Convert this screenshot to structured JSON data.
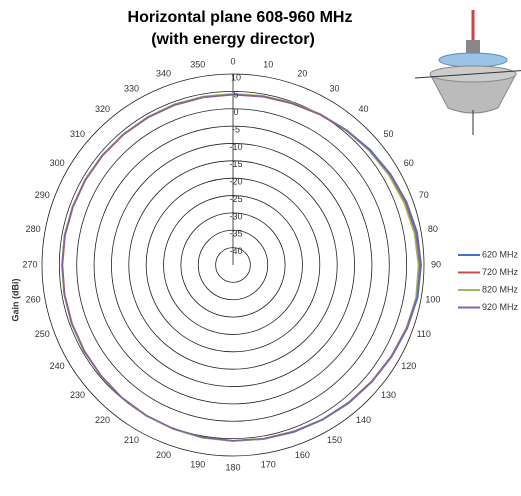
{
  "chart_data": {
    "type": "polar",
    "title": "Horizontal plane 608-960 MHz",
    "subtitle": "(with energy director)",
    "r_label": "Gain (dBi)",
    "rlim": [
      -45,
      10
    ],
    "rticks": [
      10,
      5,
      0,
      -5,
      -10,
      -15,
      -20,
      -25,
      -30,
      -35,
      -40
    ],
    "theta": [
      0,
      10,
      20,
      30,
      40,
      50,
      60,
      70,
      80,
      90,
      100,
      110,
      120,
      130,
      140,
      150,
      160,
      170,
      180,
      190,
      200,
      210,
      220,
      230,
      240,
      250,
      260,
      270,
      280,
      290,
      300,
      310,
      320,
      330,
      340,
      350
    ],
    "grid": true,
    "legend": "right",
    "series": [
      {
        "name": "620 MHz",
        "color": "#4472c4",
        "values": [
          4.2,
          4.4,
          4.7,
          5.2,
          5.8,
          6.6,
          7.4,
          8.2,
          8.9,
          9.2,
          9.0,
          8.4,
          7.8,
          7.3,
          6.9,
          6.5,
          6.2,
          5.9,
          5.7,
          5.5,
          5.3,
          5.1,
          4.9,
          4.7,
          4.5,
          4.4,
          4.3,
          4.2,
          4.2,
          4.1,
          4.1,
          4.1,
          4.1,
          4.1,
          4.2,
          4.2
        ]
      },
      {
        "name": "720 MHz",
        "color": "#c0504d",
        "values": [
          4.0,
          4.2,
          4.5,
          5.0,
          5.6,
          6.3,
          7.0,
          7.8,
          8.4,
          8.7,
          8.6,
          8.1,
          7.6,
          7.1,
          6.7,
          6.4,
          6.0,
          5.8,
          5.6,
          5.4,
          5.2,
          5.0,
          4.8,
          4.6,
          4.4,
          4.3,
          4.2,
          4.1,
          4.1,
          4.0,
          4.0,
          4.0,
          4.0,
          4.0,
          4.0,
          4.0
        ]
      },
      {
        "name": "820 MHz",
        "color": "#9bbb59",
        "values": [
          4.3,
          4.5,
          4.8,
          5.2,
          5.7,
          6.2,
          6.8,
          7.4,
          8.0,
          8.4,
          8.5,
          8.2,
          7.7,
          7.2,
          6.8,
          6.4,
          6.1,
          5.9,
          5.7,
          5.5,
          5.3,
          5.1,
          4.9,
          4.7,
          4.6,
          4.5,
          4.4,
          4.3,
          4.3,
          4.2,
          4.2,
          4.2,
          4.2,
          4.2,
          4.3,
          4.3
        ]
      },
      {
        "name": "920 MHz",
        "color": "#8064a2",
        "values": [
          4.1,
          4.3,
          4.6,
          5.1,
          5.7,
          6.4,
          7.2,
          8.0,
          8.6,
          8.9,
          8.8,
          8.3,
          7.7,
          7.2,
          6.8,
          6.4,
          6.1,
          5.8,
          5.6,
          5.4,
          5.2,
          5.0,
          4.8,
          4.6,
          4.5,
          4.4,
          4.3,
          4.2,
          4.2,
          4.1,
          4.1,
          4.1,
          4.1,
          4.1,
          4.1,
          4.1
        ]
      }
    ]
  }
}
